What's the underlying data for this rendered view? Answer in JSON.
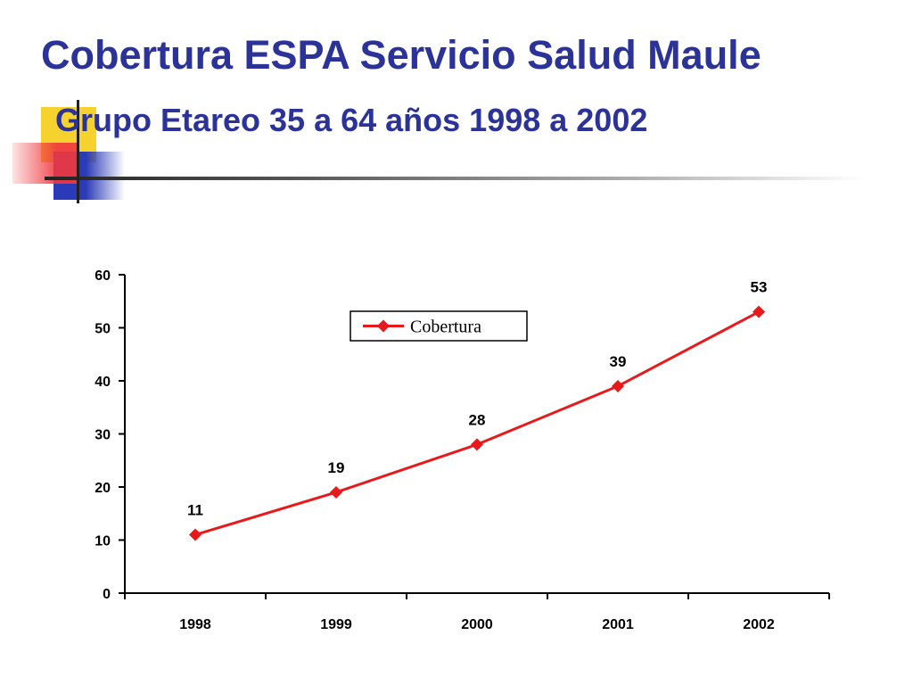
{
  "slide": {
    "title": "Cobertura ESPA Servicio Salud Maule",
    "subtitle": "Grupo Etareo 35 a 64 años  1998 a 2002"
  },
  "colors": {
    "title": "#2B3399",
    "series": "#E8191B",
    "deco_yellow": "#F5D22E",
    "deco_red": "#F0383E",
    "deco_blue": "#2B3AB8"
  },
  "chart_data": {
    "type": "line",
    "categories": [
      "1998",
      "1999",
      "2000",
      "2001",
      "2002"
    ],
    "series": [
      {
        "name": "Cobertura",
        "values": [
          11,
          19,
          28,
          39,
          53
        ],
        "marker": "diamond",
        "color": "#E8191B"
      }
    ],
    "ylim": [
      0,
      60
    ],
    "yticks": [
      0,
      10,
      20,
      30,
      40,
      50,
      60
    ],
    "grid": false,
    "legend": "top-center",
    "data_labels": true
  }
}
